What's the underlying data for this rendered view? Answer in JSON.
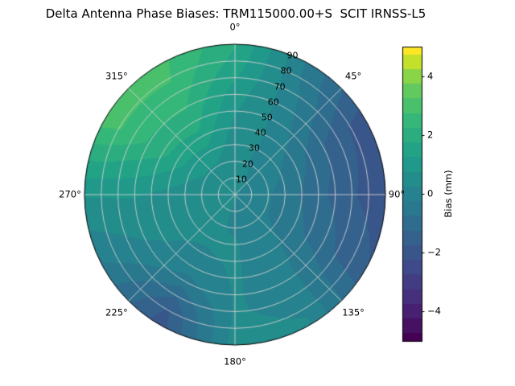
{
  "chart_data": {
    "type": "heatmap",
    "projection": "polar",
    "title": "Delta Antenna Phase Biases: TRM115000.00+S  SCIT IRNSS-L5",
    "angular_ticks": [
      {
        "deg": 0,
        "label": "0°"
      },
      {
        "deg": 45,
        "label": "45°"
      },
      {
        "deg": 90,
        "label": "90°"
      },
      {
        "deg": 135,
        "label": "135°"
      },
      {
        "deg": 180,
        "label": "180°"
      },
      {
        "deg": 225,
        "label": "225°"
      },
      {
        "deg": 270,
        "label": "270°"
      },
      {
        "deg": 315,
        "label": "315°"
      }
    ],
    "radial_ticks": [
      {
        "value": 10,
        "label": "10"
      },
      {
        "value": 20,
        "label": "20"
      },
      {
        "value": 30,
        "label": "30"
      },
      {
        "value": 40,
        "label": "40"
      },
      {
        "value": 50,
        "label": "50"
      },
      {
        "value": 60,
        "label": "60"
      },
      {
        "value": 70,
        "label": "70"
      },
      {
        "value": 80,
        "label": "80"
      },
      {
        "value": 90,
        "label": "90"
      }
    ],
    "radial_tick_azimuth_deg": 22.5,
    "radial_range": [
      0,
      90
    ],
    "grid_on": true,
    "colorbar": {
      "label": "Bias (mm)",
      "vmin": -5,
      "vmax": 5,
      "ticks": [
        {
          "value": 4,
          "label": "4"
        },
        {
          "value": 2,
          "label": "2"
        },
        {
          "value": 0,
          "label": "0"
        },
        {
          "value": -2,
          "label": "−2"
        },
        {
          "value": -4,
          "label": "−4"
        }
      ]
    },
    "colormap": {
      "name": "viridis",
      "stops": [
        [
          0.0,
          "#440154"
        ],
        [
          0.125,
          "#482878"
        ],
        [
          0.25,
          "#3e4a89"
        ],
        [
          0.375,
          "#31688e"
        ],
        [
          0.5,
          "#26828e"
        ],
        [
          0.625,
          "#1f9e89"
        ],
        [
          0.75,
          "#35b779"
        ],
        [
          0.875,
          "#6dcd59"
        ],
        [
          0.9375,
          "#b4de2c"
        ],
        [
          1.0,
          "#fde725"
        ]
      ]
    },
    "contour_step_mm": 0.5,
    "grid": {
      "azimuth_deg": [
        0,
        30,
        60,
        90,
        120,
        150,
        180,
        210,
        240,
        270,
        300,
        330
      ],
      "zenith_deg": [
        0,
        10,
        20,
        30,
        40,
        50,
        60,
        70,
        80,
        90
      ],
      "bias_mm": [
        [
          0.3,
          0.3,
          0.3,
          0.3,
          0.3,
          0.3,
          0.3,
          0.3,
          0.3,
          0.3,
          0.3,
          0.3
        ],
        [
          0.4,
          0.3,
          0.1,
          0.0,
          0.0,
          0.1,
          0.2,
          0.3,
          0.3,
          0.4,
          0.5,
          0.5
        ],
        [
          0.4,
          0.2,
          0.0,
          -0.2,
          -0.2,
          0.0,
          0.2,
          0.3,
          0.3,
          0.4,
          0.7,
          0.7
        ],
        [
          0.5,
          0.2,
          -0.2,
          -0.5,
          -0.4,
          0.0,
          0.3,
          0.3,
          0.3,
          0.5,
          1.0,
          1.1
        ],
        [
          0.6,
          0.2,
          -0.5,
          -0.8,
          -0.6,
          0.0,
          0.3,
          0.2,
          0.3,
          0.6,
          1.5,
          1.6
        ],
        [
          0.8,
          0.1,
          -0.8,
          -1.1,
          -0.8,
          0.0,
          0.3,
          0.0,
          0.3,
          0.7,
          1.9,
          2.0
        ],
        [
          1.0,
          0.0,
          -1.2,
          -1.4,
          -1.0,
          0.0,
          0.3,
          -0.5,
          0.2,
          0.8,
          2.2,
          2.3
        ],
        [
          1.3,
          -0.1,
          -1.5,
          -1.7,
          -1.3,
          0.1,
          0.3,
          -1.2,
          0.0,
          0.8,
          2.5,
          2.6
        ],
        [
          1.6,
          -0.3,
          -1.8,
          -1.9,
          -1.5,
          0.2,
          0.4,
          -1.8,
          -0.2,
          0.8,
          2.8,
          2.8
        ],
        [
          1.8,
          -0.4,
          -2.0,
          -2.1,
          -1.7,
          0.3,
          0.5,
          -2.0,
          -0.4,
          0.8,
          3.0,
          2.9
        ]
      ]
    }
  }
}
